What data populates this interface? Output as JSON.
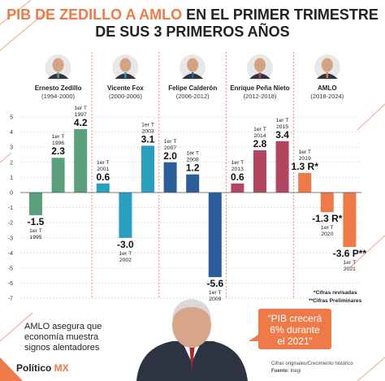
{
  "title": {
    "part1": "PIB DE ZEDILLO A AMLO",
    "part2": " EN EL PRIMER TRIMESTRE",
    "line2": "DE SUS 3 PRIMEROS AÑOS"
  },
  "presidents": [
    {
      "name": "Ernesto Zedillo",
      "years": "(1994-2000)"
    },
    {
      "name": "Vicente Fox",
      "years": "(2000-2006)"
    },
    {
      "name": "Felipe Calderón",
      "years": "(2006-2012)"
    },
    {
      "name": "Enrique Peña Nieto",
      "years": "(2012-2018)"
    },
    {
      "name": "AMLO",
      "years": "(2018-2024)"
    }
  ],
  "chart_data": {
    "type": "bar",
    "title": "PIB DE ZEDILLO A AMLO EN EL PRIMER TRIMESTRE DE SUS 3 PRIMEROS AÑOS",
    "ylim": [
      -7,
      5
    ],
    "yticks": [
      "5",
      "4",
      "3",
      "2",
      "1",
      "0",
      "-1",
      "-2",
      "-3",
      "-4",
      "-5",
      "-6",
      "-7"
    ],
    "categories": [
      "1er T 1995",
      "1er T 1996",
      "1er T 1997",
      "1er T 2001",
      "1er T 2002",
      "1er T 2003",
      "1er T 2007",
      "1er T 2008",
      "1er T 2009",
      "1er T 2013",
      "1er T 2014",
      "1er T 2015",
      "1er T 2019",
      "1er T 2020",
      "1er T 2021"
    ],
    "period_line1": [
      "1er T",
      "1er T",
      "1er T",
      "1er T",
      "1er T",
      "1er T",
      "1er T",
      "1er T",
      "1er T",
      "1er T",
      "1er T",
      "1er T",
      "1er T",
      "1er T",
      "1er T"
    ],
    "period_line2": [
      "1995",
      "1996",
      "1997",
      "2001",
      "2002",
      "2003",
      "2007",
      "2008",
      "2009",
      "2013",
      "2014",
      "2015",
      "2019",
      "2020",
      "2021"
    ],
    "values": [
      -1.5,
      2.3,
      4.2,
      0.6,
      -3.0,
      3.1,
      2.0,
      1.2,
      -5.6,
      0.6,
      2.8,
      3.4,
      1.3,
      -1.3,
      -3.6
    ],
    "value_labels": [
      "-1.5",
      "2.3",
      "4.2",
      "0.6",
      "-3.0",
      "3.1",
      "2.0",
      "1.2",
      "-5.6",
      "0.6",
      "2.8",
      "3.4",
      "1.3 R*",
      "-1.3 R*",
      "-3.6 P**"
    ],
    "president_group": [
      0,
      0,
      0,
      1,
      1,
      1,
      2,
      2,
      2,
      3,
      3,
      3,
      4,
      4,
      4
    ],
    "group_colors": [
      "#5aa07c",
      "#2a9fbe",
      "#2a5d9a",
      "#b04660",
      "#ee7a4a"
    ],
    "notes": [
      "*Cifras revisadas",
      "**Cifras Preliminares"
    ]
  },
  "footer": {
    "headline_lines": [
      "AMLO asegura que",
      "economía muestra",
      "signos alentadores"
    ],
    "quote_lines": [
      "“PIB crecerá",
      "6% durante",
      "el 2021”"
    ],
    "source_line1": "Cifras originales/Crecimiento histórico",
    "source_label": "Fuente:",
    "source_value": " Inegi",
    "brand_main": "Político",
    "brand_accent": " MX"
  },
  "colors": {
    "accent": "#ee7a4a",
    "title_dark": "#222222",
    "quote_bg": "#ee7a4a"
  }
}
